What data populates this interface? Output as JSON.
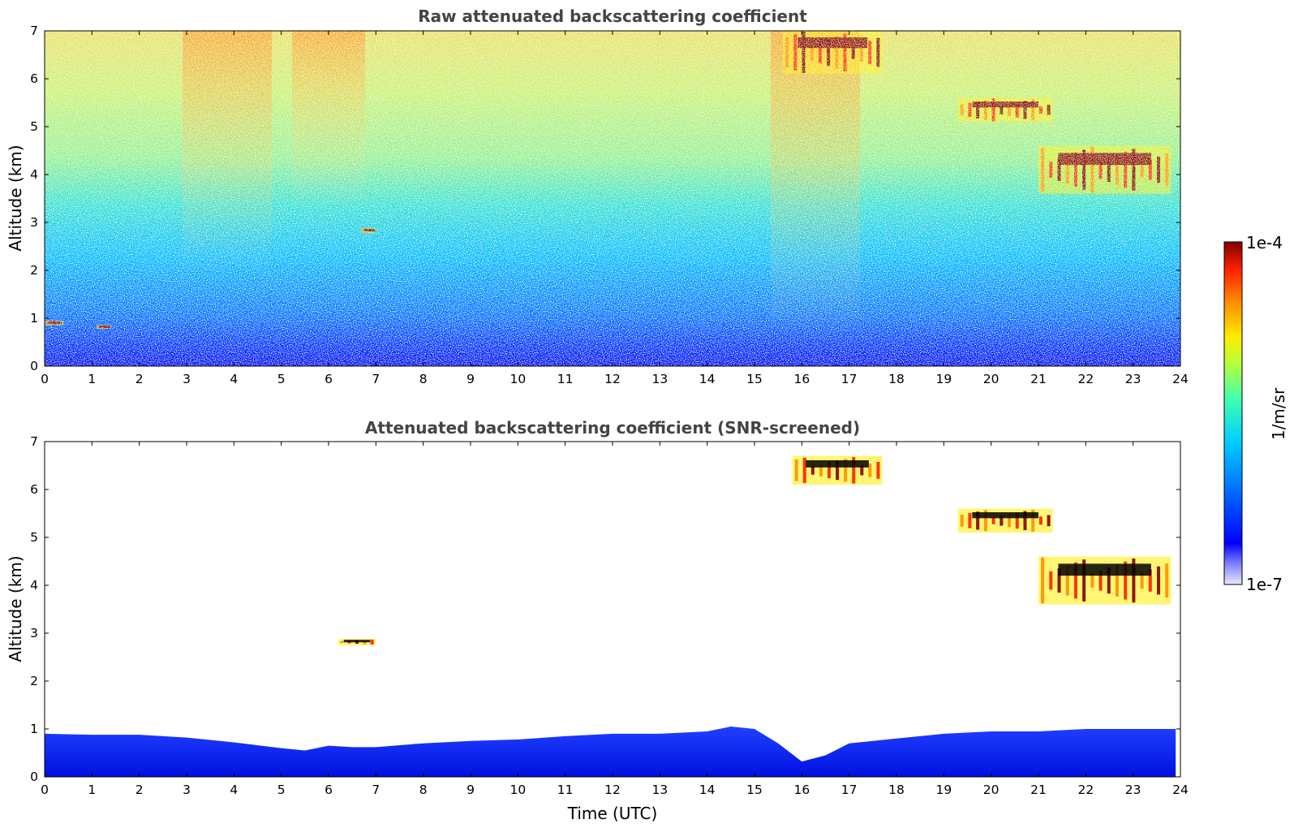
{
  "chart_data": [
    {
      "type": "heatmap",
      "title": "Raw attenuated backscattering coefficient",
      "xlabel": "",
      "ylabel": "Altitude (km)",
      "xlim": [
        0,
        24
      ],
      "ylim": [
        0,
        7
      ],
      "xticks": [
        "0",
        "1",
        "2",
        "3",
        "4",
        "5",
        "6",
        "7",
        "8",
        "9",
        "10",
        "11",
        "12",
        "13",
        "14",
        "15",
        "16",
        "17",
        "18",
        "19",
        "20",
        "21",
        "22",
        "23",
        "24"
      ],
      "yticks": [
        "0",
        "1",
        "2",
        "3",
        "4",
        "5",
        "6",
        "7"
      ],
      "features": [
        {
          "name": "boundary layer",
          "x": [
            0,
            24
          ],
          "y": [
            0,
            0.6
          ],
          "level": "low"
        },
        {
          "name": "cloud",
          "x": [
            0,
            0.4
          ],
          "y": [
            0.85,
            0.95
          ],
          "level": "high"
        },
        {
          "name": "cloud",
          "x": [
            1.1,
            1.4
          ],
          "y": [
            0.78,
            0.86
          ],
          "level": "high"
        },
        {
          "name": "cloud",
          "x": [
            6.7,
            7.0
          ],
          "y": [
            2.78,
            2.88
          ],
          "level": "high"
        },
        {
          "name": "cloud",
          "x": [
            15.6,
            17.7
          ],
          "y": [
            6.1,
            7.0
          ],
          "level": "high"
        },
        {
          "name": "cloud",
          "x": [
            19.3,
            21.3
          ],
          "y": [
            5.1,
            5.6
          ],
          "level": "high"
        },
        {
          "name": "cloud",
          "x": [
            21.0,
            23.8
          ],
          "y": [
            3.6,
            4.6
          ],
          "level": "high"
        }
      ]
    },
    {
      "type": "heatmap",
      "title": "Attenuated backscattering coefficient (SNR-screened)",
      "xlabel": "Time (UTC)",
      "ylabel": "Altitude (km)",
      "xlim": [
        0,
        24
      ],
      "ylim": [
        0,
        7
      ],
      "xticks": [
        "0",
        "1",
        "2",
        "3",
        "4",
        "5",
        "6",
        "7",
        "8",
        "9",
        "10",
        "11",
        "12",
        "13",
        "14",
        "15",
        "16",
        "17",
        "18",
        "19",
        "20",
        "21",
        "22",
        "23",
        "24"
      ],
      "yticks": [
        "0",
        "1",
        "2",
        "3",
        "4",
        "5",
        "6",
        "7"
      ],
      "boundary_layer_top_km": [
        [
          0,
          0.9
        ],
        [
          1,
          0.88
        ],
        [
          2,
          0.88
        ],
        [
          3,
          0.82
        ],
        [
          4,
          0.72
        ],
        [
          5,
          0.6
        ],
        [
          5.5,
          0.55
        ],
        [
          6,
          0.65
        ],
        [
          6.5,
          0.62
        ],
        [
          7,
          0.62
        ],
        [
          8,
          0.7
        ],
        [
          9,
          0.75
        ],
        [
          10,
          0.78
        ],
        [
          11,
          0.85
        ],
        [
          12,
          0.9
        ],
        [
          13,
          0.9
        ],
        [
          14,
          0.95
        ],
        [
          14.5,
          1.05
        ],
        [
          15,
          1.0
        ],
        [
          15.5,
          0.7
        ],
        [
          16,
          0.32
        ],
        [
          16.5,
          0.45
        ],
        [
          17,
          0.7
        ],
        [
          18,
          0.8
        ],
        [
          19,
          0.9
        ],
        [
          20,
          0.95
        ],
        [
          21,
          0.95
        ],
        [
          22,
          1.0
        ],
        [
          23,
          1.0
        ],
        [
          23.9,
          1.0
        ]
      ],
      "features": [
        {
          "name": "cloud",
          "x": [
            6.2,
            7.0
          ],
          "y": [
            2.75,
            2.88
          ],
          "level": "high"
        },
        {
          "name": "cloud",
          "x": [
            15.8,
            17.7
          ],
          "y": [
            6.1,
            6.7
          ],
          "level": "high"
        },
        {
          "name": "cloud",
          "x": [
            19.3,
            21.3
          ],
          "y": [
            5.1,
            5.6
          ],
          "level": "high"
        },
        {
          "name": "cloud",
          "x": [
            21.0,
            23.8
          ],
          "y": [
            3.6,
            4.6
          ],
          "level": "high"
        }
      ]
    }
  ],
  "colorbar": {
    "label": "1/m/sr",
    "max_label": "1e-4",
    "min_label": "1e-7",
    "colormap": "jet",
    "colors": [
      "#e8e8ff",
      "#0000ff",
      "#0080ff",
      "#00d0ff",
      "#40ffb0",
      "#b0ff40",
      "#ffee00",
      "#ff9000",
      "#ff2000",
      "#800000"
    ]
  }
}
